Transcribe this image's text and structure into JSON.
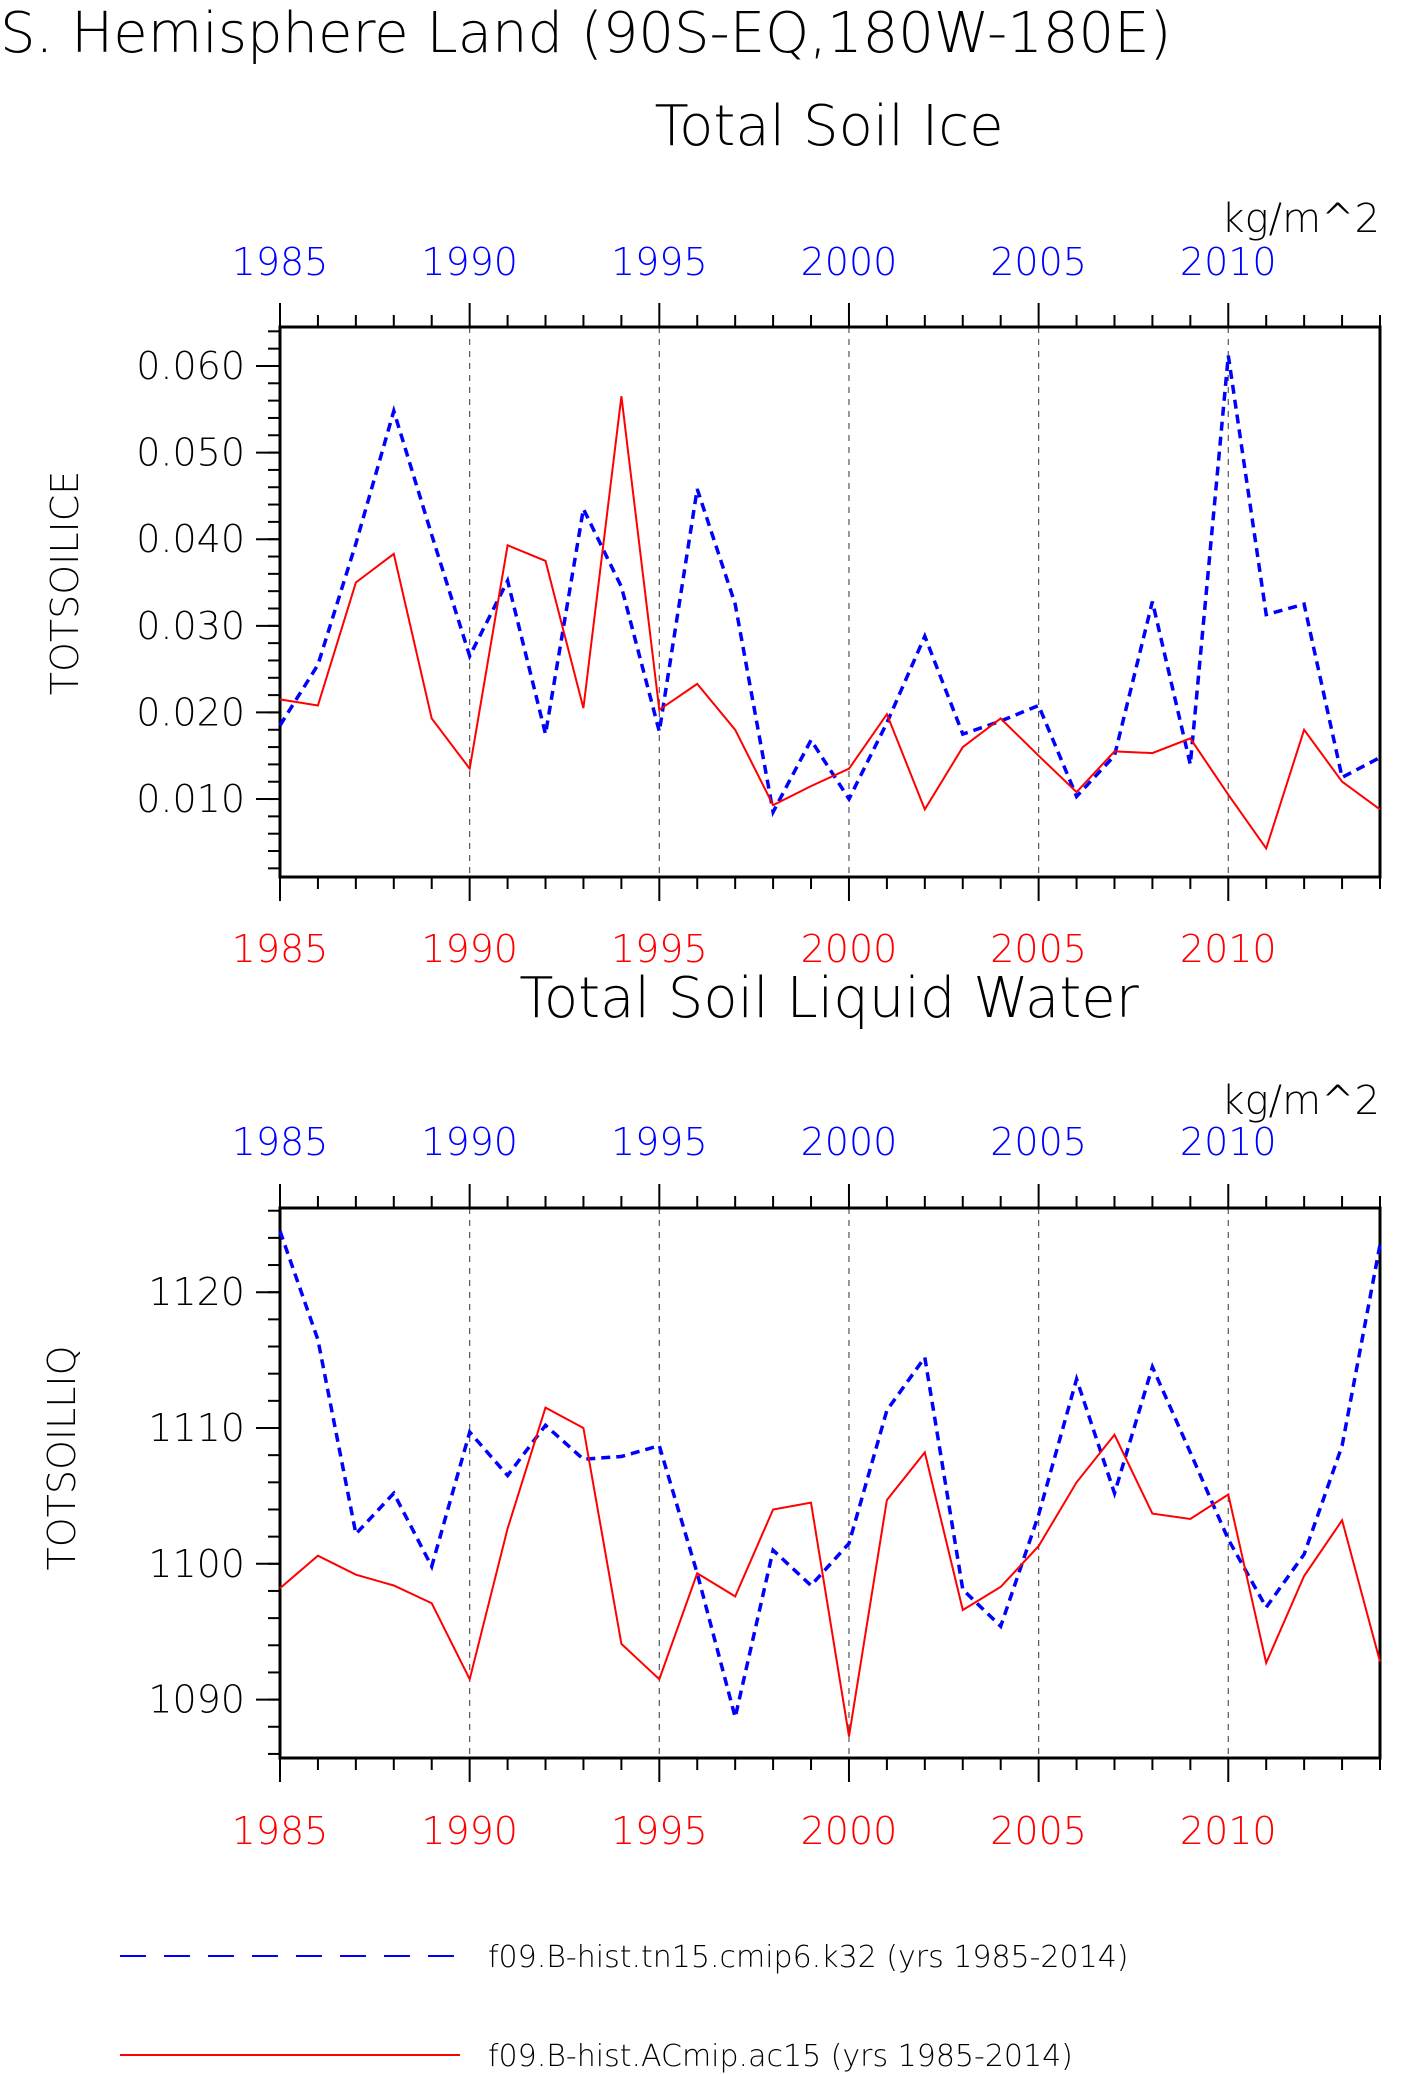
{
  "header": {
    "title": "S. Hemisphere Land (90S-EQ,180W-180E)"
  },
  "legend": {
    "items": [
      {
        "label": "f09.B-hist.tn15.cmip6.k32 (yrs 1985-2014)",
        "color": "#0000ff",
        "style": "dashed"
      },
      {
        "label": "f09.B-hist.ACmip.ac15 (yrs 1985-2014)",
        "color": "#ff0000",
        "style": "solid"
      }
    ]
  },
  "chart_data": [
    {
      "type": "line",
      "title": "Total Soil Ice",
      "units": "kg/m^2",
      "ylabel": "TOTSOILICE",
      "xlabel": "",
      "xlim": [
        1985,
        2014
      ],
      "ylim": [
        0.001,
        0.0645
      ],
      "x_ticks": [
        1985,
        1990,
        1995,
        2000,
        2005,
        2010
      ],
      "y_ticks": [
        "0.010",
        "0.020",
        "0.030",
        "0.040",
        "0.050",
        "0.060"
      ],
      "grid": "vertical dashed at each 5 years",
      "x": [
        1985,
        1986,
        1987,
        1988,
        1989,
        1990,
        1991,
        1992,
        1993,
        1994,
        1995,
        1996,
        1997,
        1998,
        1999,
        2000,
        2001,
        2002,
        2003,
        2004,
        2005,
        2006,
        2007,
        2008,
        2009,
        2010,
        2011,
        2012,
        2013,
        2014
      ],
      "series": [
        {
          "name": "f09.B-hist.tn15.cmip6.k32 (yrs 1985-2014)",
          "color": "#0000ff",
          "dashed": true,
          "values": [
            0.0185,
            0.0255,
            0.0395,
            0.0548,
            0.0405,
            0.0265,
            0.0352,
            0.0175,
            0.0435,
            0.0345,
            0.0178,
            0.0458,
            0.0325,
            0.0085,
            0.0168,
            0.01,
            0.0188,
            0.0288,
            0.0175,
            0.019,
            0.0208,
            0.0103,
            0.015,
            0.0328,
            0.014,
            0.0612,
            0.0313,
            0.0325,
            0.0125,
            0.0148
          ]
        },
        {
          "name": "f09.B-hist.ACmip.ac15 (yrs 1985-2014)",
          "color": "#ff0000",
          "dashed": false,
          "values": [
            0.0215,
            0.0208,
            0.035,
            0.0383,
            0.0193,
            0.0135,
            0.0393,
            0.0375,
            0.0205,
            0.0565,
            0.0203,
            0.0233,
            0.018,
            0.0093,
            0.0115,
            0.0135,
            0.0198,
            0.0088,
            0.016,
            0.0193,
            0.015,
            0.0108,
            0.0155,
            0.0153,
            0.017,
            0.0105,
            0.0043,
            0.018,
            0.012,
            0.0088
          ]
        }
      ]
    },
    {
      "type": "line",
      "title": "Total Soil Liquid Water",
      "units": "kg/m^2",
      "ylabel": "TOTSOILLIQ",
      "xlabel": "",
      "xlim": [
        1985,
        2014
      ],
      "ylim": [
        1085.7,
        1126.2
      ],
      "x_ticks": [
        1985,
        1990,
        1995,
        2000,
        2005,
        2010
      ],
      "y_ticks": [
        "1090",
        "1100",
        "1110",
        "1120"
      ],
      "grid": "vertical dashed at each 5 years",
      "x": [
        1985,
        1986,
        1987,
        1988,
        1989,
        1990,
        1991,
        1992,
        1993,
        1994,
        1995,
        1996,
        1997,
        1998,
        1999,
        2000,
        2001,
        2002,
        2003,
        2004,
        2005,
        2006,
        2007,
        2008,
        2009,
        2010,
        2011,
        2012,
        2013,
        2014
      ],
      "series": [
        {
          "name": "f09.B-hist.tn15.cmip6.k32 (yrs 1985-2014)",
          "color": "#0000ff",
          "dashed": true,
          "values": [
            1124.5,
            1116.5,
            1102.2,
            1105.2,
            1099.8,
            1109.7,
            1106.5,
            1110.2,
            1107.7,
            1107.9,
            1108.7,
            1099.3,
            1088.7,
            1101.0,
            1098.4,
            1101.5,
            1111.3,
            1115.2,
            1098.1,
            1095.4,
            1103.6,
            1113.6,
            1105.2,
            1114.5,
            1108.2,
            1101.8,
            1096.8,
            1100.7,
            1108.7,
            1123.5
          ]
        },
        {
          "name": "f09.B-hist.ACmip.ac15 (yrs 1985-2014)",
          "color": "#ff0000",
          "dashed": false,
          "values": [
            1098.2,
            1100.6,
            1099.2,
            1098.4,
            1097.1,
            1091.5,
            1102.6,
            1111.5,
            1110.0,
            1094.1,
            1091.5,
            1099.3,
            1097.6,
            1104.0,
            1104.5,
            1087.3,
            1104.7,
            1108.2,
            1096.6,
            1098.3,
            1101.3,
            1106.0,
            1109.5,
            1103.7,
            1103.3,
            1105.1,
            1092.7,
            1099.1,
            1103.2,
            1092.8
          ]
        }
      ]
    }
  ]
}
